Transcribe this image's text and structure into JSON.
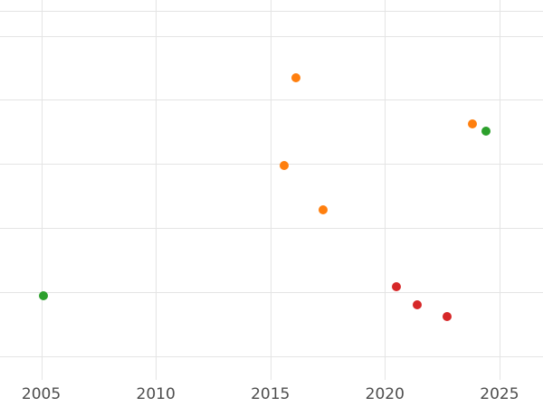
{
  "chart_data": {
    "type": "scatter",
    "title": "",
    "xlabel": "",
    "ylabel": "",
    "legend": "none",
    "grid": true,
    "x_ticks": [
      2005,
      2010,
      2015,
      2020,
      2025
    ],
    "xlim": [
      2003.2,
      2026.9
    ],
    "ylim": [
      0,
      1
    ],
    "y_axis_note": "no y tick labels visible; y values normalized 0-1 of plot height",
    "y_gridlines": [
      0.971,
      0.905,
      0.738,
      0.569,
      0.4,
      0.231,
      0.062
    ],
    "marker_diameter_px": 10,
    "series": [
      {
        "name": "green",
        "color": "#2ca02c",
        "points": [
          {
            "x": 2005.1,
            "y": 0.221
          },
          {
            "x": 2024.4,
            "y": 0.655
          }
        ]
      },
      {
        "name": "orange",
        "color": "#ff7f0e",
        "points": [
          {
            "x": 2015.6,
            "y": 0.564
          },
          {
            "x": 2016.1,
            "y": 0.795
          },
          {
            "x": 2017.3,
            "y": 0.448
          },
          {
            "x": 2023.8,
            "y": 0.674
          }
        ]
      },
      {
        "name": "red",
        "color": "#d62728",
        "points": [
          {
            "x": 2020.5,
            "y": 0.245
          },
          {
            "x": 2021.4,
            "y": 0.198
          },
          {
            "x": 2022.7,
            "y": 0.167
          }
        ]
      }
    ]
  }
}
